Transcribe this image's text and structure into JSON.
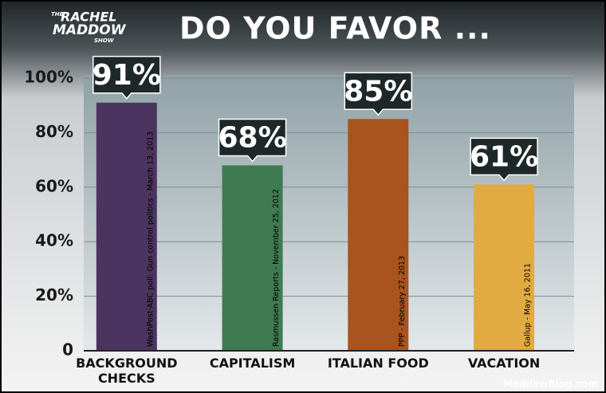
{
  "logo": {
    "lines": [
      "THE",
      "RACHEL",
      "MADDOW",
      "SHOW"
    ]
  },
  "watermark": "MaddowBlog.com",
  "chart_data": {
    "type": "bar",
    "title": "DO YOU FAVOR ...",
    "categories": [
      "BACKGROUND CHECKS",
      "CAPITALISM",
      "ITALIAN FOOD",
      "VACATION"
    ],
    "values": [
      91,
      68,
      85,
      61
    ],
    "value_labels": [
      "91%",
      "68%",
      "85%",
      "61%"
    ],
    "colors": [
      "#4b3560",
      "#3f7b50",
      "#a9531f",
      "#e1aa42"
    ],
    "annotations": [
      "WashPost-ABC poll: Gun control politics - March 13, 2013",
      "Rasmussen Reports - November 25, 2012",
      "PPP - February 27, 2013",
      "Gallup - May 16, 2011"
    ],
    "ylim": [
      0,
      100
    ],
    "yticks": [
      0,
      {
        "value": 20,
        "label": "20%"
      },
      {
        "value": 40,
        "label": "40%"
      },
      {
        "value": 60,
        "label": "60%"
      },
      {
        "value": 80,
        "label": "80%"
      },
      {
        "value": 100,
        "label": "100%"
      }
    ],
    "grid": true
  }
}
